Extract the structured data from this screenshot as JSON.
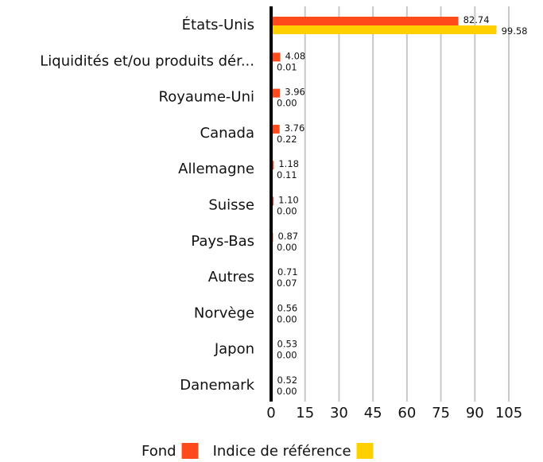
{
  "chart_data": {
    "type": "bar",
    "orientation": "horizontal",
    "categories": [
      "États-Unis",
      "Liquidités et/ou produits dér...",
      "Royaume-Uni",
      "Canada",
      "Allemagne",
      "Suisse",
      "Pays-Bas",
      "Autres",
      "Norvège",
      "Japon",
      "Danemark"
    ],
    "series": [
      {
        "name": "Fond",
        "color": "#ff4a1c",
        "values": [
          82.74,
          4.08,
          3.96,
          3.76,
          1.18,
          1.1,
          0.87,
          0.71,
          0.56,
          0.53,
          0.52
        ],
        "value_labels": [
          "82.74",
          "4.08",
          "3.96",
          "3.76",
          "1.18",
          "1.10",
          "0.87",
          "0.71",
          "0.56",
          "0.53",
          "0.52"
        ]
      },
      {
        "name": "Indice de référence",
        "color": "#ffd000",
        "values": [
          99.58,
          0.01,
          0.0,
          0.22,
          0.11,
          0.0,
          0.0,
          0.07,
          0.0,
          0.0,
          0.0
        ],
        "value_labels": [
          "99.58",
          "0.01",
          "0.00",
          "0.22",
          "0.11",
          "0.00",
          "0.00",
          "0.07",
          "0.00",
          "0.00",
          "0.00"
        ]
      }
    ],
    "xlim": [
      0,
      105
    ],
    "xticks": [
      0,
      15,
      30,
      45,
      60,
      75,
      90,
      105
    ],
    "grid": true,
    "legend": "bottom"
  }
}
